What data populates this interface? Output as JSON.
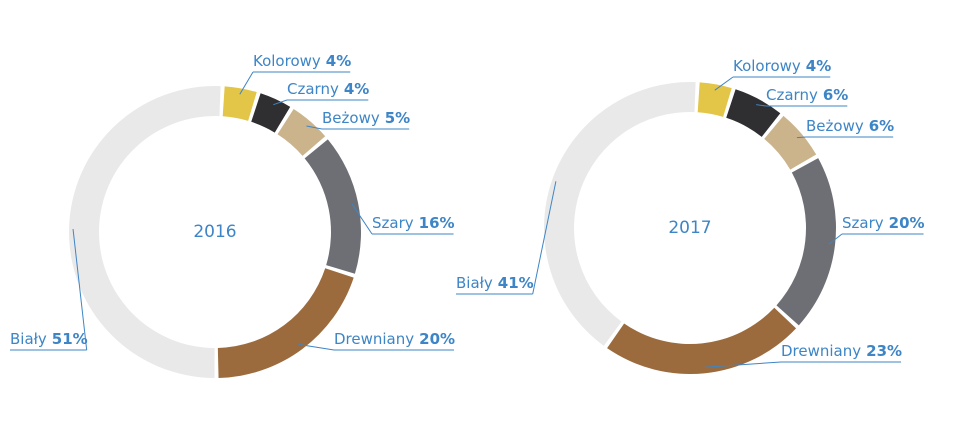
{
  "chart_data": [
    {
      "type": "donut",
      "title": "2016",
      "categories": [
        "Kolorowy",
        "Czarny",
        "Beżowy",
        "Szary",
        "Drewniany",
        "Biały"
      ],
      "values": [
        4,
        4,
        5,
        16,
        20,
        51
      ],
      "value_labels": [
        "4%",
        "4%",
        "5%",
        "16%",
        "20%",
        "51%"
      ],
      "colors": [
        "#e3c548",
        "#2f2f31",
        "#cbb38c",
        "#6e6f74",
        "#9b6b3d",
        "#e9e9e9"
      ]
    },
    {
      "type": "donut",
      "title": "2017",
      "categories": [
        "Kolorowy",
        "Czarny",
        "Beżowy",
        "Szary",
        "Drewniany",
        "Biały"
      ],
      "values": [
        4,
        6,
        6,
        20,
        23,
        41
      ],
      "value_labels": [
        "4%",
        "6%",
        "6%",
        "20%",
        "23%",
        "41%"
      ],
      "colors": [
        "#e3c548",
        "#2f2f31",
        "#cbb38c",
        "#6e6f74",
        "#9b6b3d",
        "#e9e9e9"
      ]
    }
  ]
}
